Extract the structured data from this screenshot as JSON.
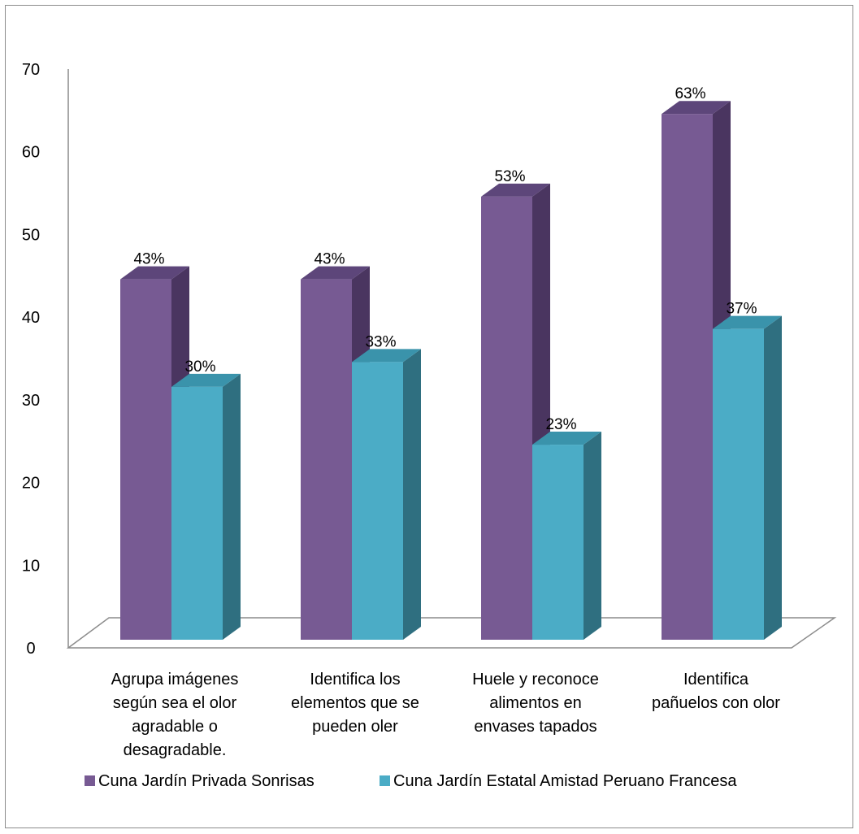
{
  "chart_data": {
    "type": "bar",
    "style": "3d-clustered-column",
    "categories": [
      [
        "Agrupa imágenes",
        "según sea el olor",
        "agradable o",
        "desagradable."
      ],
      [
        "Identifica los",
        "elementos que se",
        "pueden oler"
      ],
      [
        "Huele y reconoce",
        "alimentos en",
        "envases tapados"
      ],
      [
        "Identifica",
        "pañuelos con olor"
      ]
    ],
    "series": [
      {
        "name": "Cuna Jardín Privada Sonrisas",
        "values": [
          43,
          43,
          53,
          63
        ],
        "labels": [
          "43%",
          "43%",
          "53%",
          "63%"
        ],
        "color": "#775A93",
        "side_color": "#4A3560",
        "top_color": "#5D467A"
      },
      {
        "name": "Cuna Jardín Estatal Amistad Peruano Francesa",
        "values": [
          30,
          33,
          23,
          37
        ],
        "labels": [
          "30%",
          "33%",
          "23%",
          "37%"
        ],
        "color": "#4BACC6",
        "side_color": "#2F6F80",
        "top_color": "#3A93AB"
      }
    ],
    "ylim": [
      0,
      70
    ],
    "yticks": [
      0,
      10,
      20,
      30,
      40,
      50,
      60,
      70
    ],
    "legend_position": "bottom",
    "grid": false
  }
}
